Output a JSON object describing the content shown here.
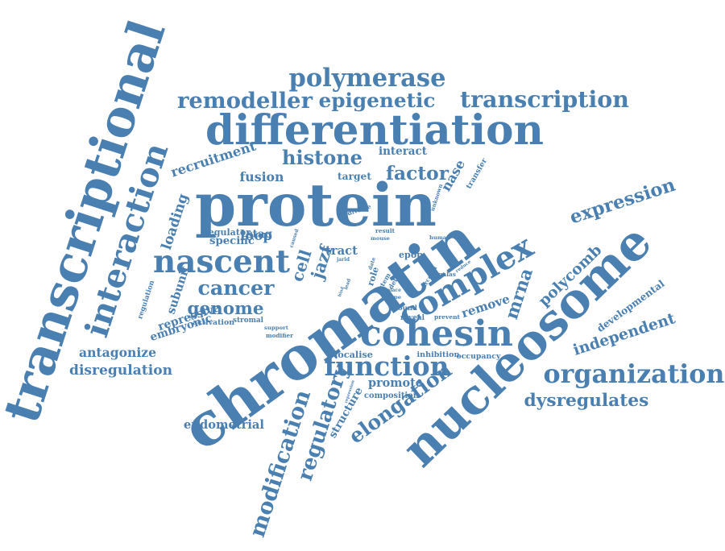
{
  "colors": {
    "word": "#4a7fb1",
    "background": "#ffffff"
  },
  "words": [
    "chromatin",
    "nucleosome",
    "transcriptional",
    "protein",
    "interaction",
    "differentiation",
    "cohesin",
    "complex",
    "modification",
    "nascent",
    "elongation",
    "function",
    "organization",
    "transcription",
    "polymerase",
    "remodeller",
    "epigenetic",
    "histone",
    "factor",
    "expression",
    "regulatory",
    "independent",
    "cancer",
    "genome",
    "polycomb",
    "mrna",
    "dysregulates",
    "recruitment",
    "fusion",
    "loop",
    "stag",
    "cell",
    "jazf",
    "loading",
    "subunit",
    "remove",
    "disregulation",
    "antagonize",
    "endometrial",
    "developmental",
    "promote",
    "structure",
    "repressive",
    "embryonic",
    "regulation",
    "interact",
    "target",
    "nase",
    "transfer",
    "unknown",
    "regulator",
    "specific",
    "caused",
    "tract",
    "diverse",
    "activation",
    "stromal",
    "support",
    "modifier",
    "localise",
    "inhibition",
    "occupancy",
    "composition",
    "repression",
    "bound",
    "reveal",
    "prevent",
    "role",
    "defect",
    "sarcoma",
    "stem",
    "result",
    "mouse",
    "human",
    "epop",
    "palas",
    "reduce",
    "type",
    "place",
    "jarid",
    "date",
    "lead",
    "bind"
  ]
}
